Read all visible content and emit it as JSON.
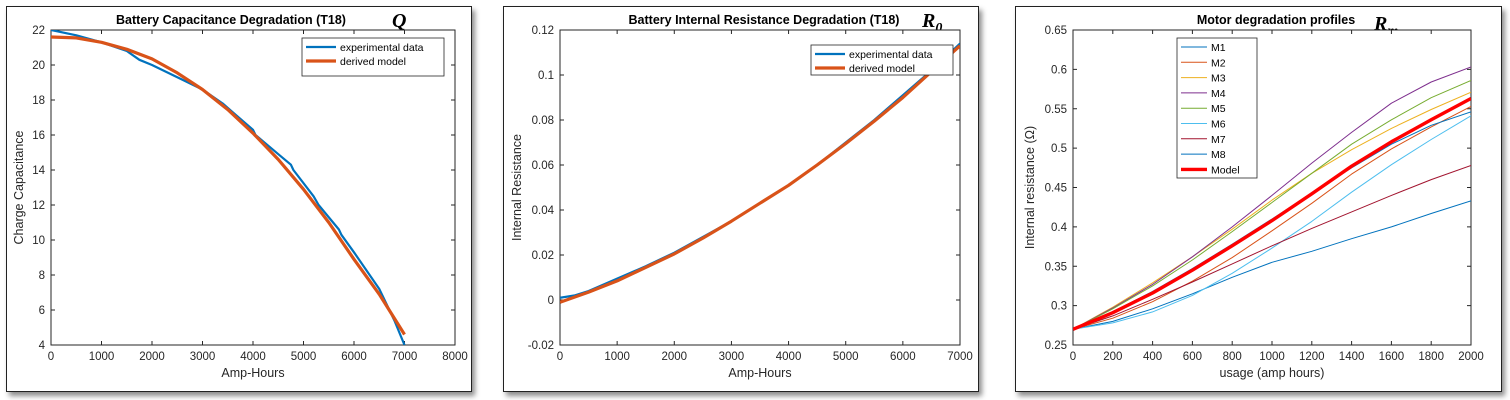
{
  "chart_data": [
    {
      "type": "line",
      "title": "Battery Capacitance Degradation (T18)",
      "symbol": "Q",
      "xlabel": "Amp-Hours",
      "ylabel": "Charge Capacitance",
      "xlim": [
        0,
        8000
      ],
      "ylim": [
        4,
        22
      ],
      "xticks": [
        0,
        1000,
        2000,
        3000,
        4000,
        5000,
        6000,
        7000,
        8000
      ],
      "yticks": [
        4,
        6,
        8,
        10,
        12,
        14,
        16,
        18,
        20,
        22
      ],
      "grid": false,
      "legend": "top-right",
      "series": [
        {
          "name": "experimental data",
          "color": "#0072BD",
          "x": [
            0,
            500,
            1000,
            1500,
            1750,
            2000,
            2500,
            3000,
            3400,
            3600,
            4000,
            4050,
            4500,
            4750,
            4800,
            5200,
            5300,
            5700,
            5750,
            6000,
            6500,
            6800,
            7000
          ],
          "y": [
            22.0,
            21.7,
            21.3,
            20.8,
            20.3,
            20.0,
            19.3,
            18.6,
            17.8,
            17.3,
            16.3,
            16.0,
            14.9,
            14.3,
            14.0,
            12.5,
            12.0,
            10.6,
            10.3,
            9.3,
            7.2,
            5.4,
            4.0
          ]
        },
        {
          "name": "derived model",
          "color": "#D95319",
          "x": [
            0,
            500,
            1000,
            1500,
            2000,
            2500,
            3000,
            3500,
            4000,
            4500,
            5000,
            5500,
            6000,
            6500,
            7000
          ],
          "y": [
            21.6,
            21.55,
            21.3,
            20.9,
            20.35,
            19.55,
            18.6,
            17.45,
            16.1,
            14.6,
            12.9,
            11.0,
            8.9,
            6.9,
            4.6
          ]
        }
      ]
    },
    {
      "type": "line",
      "title": "Battery Internal Resistance Degradation (T18)",
      "symbol": "R0",
      "symbol_main": "R",
      "symbol_sub": "0",
      "xlabel": "Amp-Hours",
      "ylabel": "Internal Resistance",
      "xlim": [
        0,
        7000
      ],
      "ylim": [
        -0.02,
        0.12
      ],
      "xticks": [
        0,
        1000,
        2000,
        3000,
        4000,
        5000,
        6000,
        7000
      ],
      "yticks": [
        -0.02,
        0,
        0.02,
        0.04,
        0.06,
        0.08,
        0.1,
        0.12
      ],
      "ytick_labels": [
        "-0.02",
        "0",
        "0.02",
        "0.04",
        "0.06",
        "0.08",
        "0.1",
        "0.12"
      ],
      "grid": false,
      "legend": "top-right",
      "series": [
        {
          "name": "experimental data",
          "color": "#0072BD",
          "x": [
            0,
            250,
            500,
            1000,
            1500,
            2000,
            2500,
            3000,
            3500,
            4000,
            4500,
            5000,
            5500,
            6000,
            6500,
            7000
          ],
          "y": [
            0.001,
            0.002,
            0.004,
            0.0095,
            0.015,
            0.021,
            0.028,
            0.035,
            0.043,
            0.051,
            0.06,
            0.07,
            0.08,
            0.091,
            0.102,
            0.114
          ]
        },
        {
          "name": "derived model",
          "color": "#D95319",
          "x": [
            0,
            500,
            1000,
            1500,
            2000,
            2500,
            3000,
            3500,
            4000,
            4500,
            5000,
            5500,
            6000,
            6500,
            7000
          ],
          "y": [
            -0.001,
            0.0035,
            0.0085,
            0.0145,
            0.0205,
            0.0275,
            0.035,
            0.043,
            0.051,
            0.06,
            0.0695,
            0.0795,
            0.09,
            0.1015,
            0.113
          ]
        }
      ]
    },
    {
      "type": "line",
      "title": "Motor degradation profiles",
      "symbol": "Rm",
      "symbol_main": "R",
      "symbol_sub": "m",
      "xlabel": "usage (amp hours)",
      "ylabel": "Internal resistance (Ω)",
      "xlim": [
        0,
        2000
      ],
      "ylim": [
        0.25,
        0.65
      ],
      "xticks": [
        0,
        200,
        400,
        600,
        800,
        1000,
        1200,
        1400,
        1600,
        1800,
        2000
      ],
      "yticks": [
        0.25,
        0.3,
        0.35,
        0.4,
        0.45,
        0.5,
        0.55,
        0.6,
        0.65
      ],
      "ytick_labels": [
        "0.25",
        "0.3",
        "0.35",
        "0.4",
        "0.45",
        "0.5",
        "0.55",
        "0.6",
        "0.65"
      ],
      "grid": false,
      "legend": "top-left",
      "x": [
        0,
        200,
        400,
        600,
        800,
        1000,
        1200,
        1400,
        1600,
        1800,
        2000
      ],
      "series": [
        {
          "name": "M1",
          "color": "#0072BD",
          "y": [
            0.27,
            0.28,
            0.296,
            0.315,
            0.336,
            0.355,
            0.369,
            0.385,
            0.4,
            0.417,
            0.433
          ]
        },
        {
          "name": "M2",
          "color": "#D95319",
          "y": [
            0.27,
            0.284,
            0.305,
            0.331,
            0.361,
            0.395,
            0.43,
            0.467,
            0.499,
            0.527,
            0.553
          ]
        },
        {
          "name": "M3",
          "color": "#EDB120",
          "y": [
            0.27,
            0.298,
            0.329,
            0.362,
            0.397,
            0.434,
            0.468,
            0.498,
            0.525,
            0.549,
            0.571
          ]
        },
        {
          "name": "M4",
          "color": "#7E2F8E",
          "y": [
            0.27,
            0.297,
            0.327,
            0.362,
            0.4,
            0.44,
            0.481,
            0.52,
            0.557,
            0.584,
            0.603
          ]
        },
        {
          "name": "M5",
          "color": "#77AC30",
          "y": [
            0.27,
            0.296,
            0.325,
            0.358,
            0.394,
            0.431,
            0.468,
            0.505,
            0.536,
            0.564,
            0.586
          ]
        },
        {
          "name": "M6",
          "color": "#4DBEEE",
          "y": [
            0.27,
            0.278,
            0.292,
            0.313,
            0.341,
            0.373,
            0.407,
            0.444,
            0.479,
            0.511,
            0.541
          ]
        },
        {
          "name": "M7",
          "color": "#A2142F",
          "y": [
            0.27,
            0.287,
            0.308,
            0.33,
            0.353,
            0.376,
            0.398,
            0.419,
            0.44,
            0.46,
            0.478
          ]
        },
        {
          "name": "M8",
          "color": "#0072BD",
          "y": [
            0.27,
            0.292,
            0.318,
            0.347,
            0.378,
            0.41,
            0.443,
            0.475,
            0.505,
            0.529,
            0.546
          ]
        },
        {
          "name": "Model",
          "color": "#FF0000",
          "thick": true,
          "y": [
            0.27,
            0.291,
            0.316,
            0.345,
            0.376,
            0.408,
            0.442,
            0.477,
            0.508,
            0.536,
            0.563
          ]
        }
      ]
    }
  ]
}
